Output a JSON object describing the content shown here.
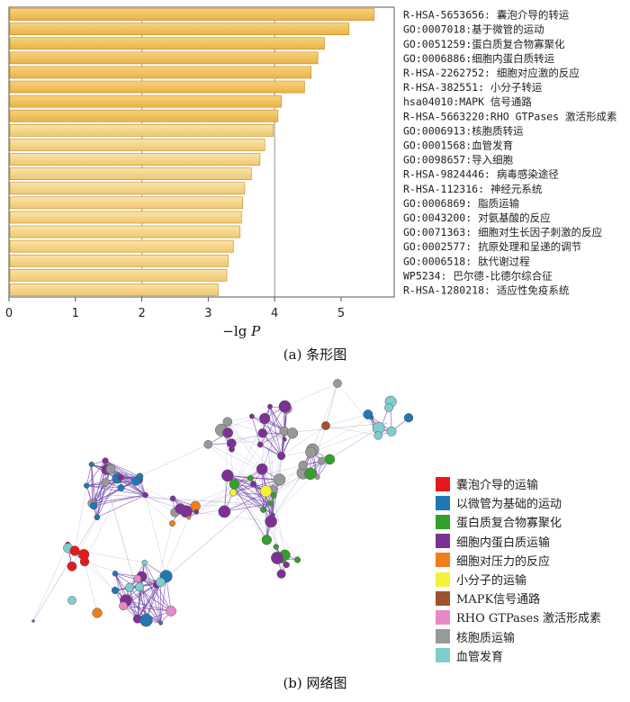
{
  "chart_data": [
    {
      "type": "bar",
      "orientation": "horizontal",
      "caption": "(a) 条形图",
      "xlabel_prefix": "−lg ",
      "xlabel_italic": "P",
      "xlim": [
        0,
        5.8
      ],
      "xticks": [
        0,
        1,
        2,
        3,
        4,
        5
      ],
      "reference_lines": [
        2,
        4
      ],
      "bar_colors": [
        "#f2b43c",
        "#f3ce7c"
      ],
      "categories": [
        "R-HSA-5653656: 囊泡介导的转运",
        "GO:0007018:基于微管的运动",
        "GO:0051259:蛋白质复合物寡聚化",
        "GO:0006886:细胞内蛋白质转运",
        "R-HSA-2262752: 细胞对应激的反应",
        "R-HSA-382551: 小分子转运",
        "hsa04010:MAPK 信号通路",
        "R-HSA-5663220:RHO GTPases 激活形成素",
        "GO:0006913:核胞质转运",
        "GO:0001568:血管发育",
        "GO:0098657:导入细胞",
        "R-HSA-9824446: 病毒感染途径",
        "R-HSA-112316: 神经元系统",
        "GO:0006869: 脂质运输",
        "GO:0043200: 对氨基酸的反应",
        "GO:0071363: 细胞对生长因子刺激的反应",
        "GO:0002577: 抗原处理和呈递的调节",
        "GO:0006518: 肽代谢过程",
        "WP5234: 巴尔德-比德尔综合征",
        "R-HSA-1280218: 适应性免疫系统"
      ],
      "values": [
        5.5,
        5.12,
        4.75,
        4.65,
        4.55,
        4.45,
        4.1,
        4.05,
        3.98,
        3.85,
        3.78,
        3.65,
        3.55,
        3.52,
        3.5,
        3.48,
        3.38,
        3.3,
        3.28,
        3.15
      ]
    },
    {
      "type": "network",
      "caption": "(b) 网络图",
      "legend": [
        {
          "label": "囊泡介导的运输",
          "color": "#e31a1c"
        },
        {
          "label": "以微管为基础的运动",
          "color": "#1f78b4"
        },
        {
          "label": "蛋白质复合物寡聚化",
          "color": "#33a02c"
        },
        {
          "label": "细胞内蛋白质运输",
          "color": "#7b3294"
        },
        {
          "label": "细胞对压力的反应",
          "color": "#f07d1a"
        },
        {
          "label": "小分子的运输",
          "color": "#f2f23a"
        },
        {
          "label": "MAPK信号通路",
          "color": "#a0522d"
        },
        {
          "label": "RHO GTPases 激活形成素",
          "color": "#e78ac3"
        },
        {
          "label": "核胞质运输",
          "color": "#999999"
        },
        {
          "label": "血管发育",
          "color": "#7fcdcd"
        }
      ]
    }
  ]
}
